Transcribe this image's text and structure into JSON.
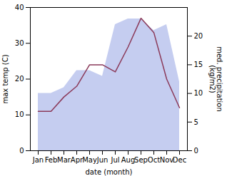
{
  "chart_data": {
    "type": "line",
    "categories": [
      "Jan",
      "Feb",
      "Mar",
      "Apr",
      "May",
      "Jun",
      "Jul",
      "Aug",
      "Sep",
      "Oct",
      "Nov",
      "Dec"
    ],
    "series": [
      {
        "type": "area",
        "axis": "y2",
        "color": "#c5cdf0",
        "values": [
          10,
          10,
          11,
          14,
          14,
          13,
          22,
          23,
          23,
          21,
          22,
          12
        ]
      },
      {
        "type": "line",
        "color": "#8B3A5A",
        "values": [
          11,
          11,
          15,
          18,
          24,
          24,
          22,
          29,
          37,
          33,
          20,
          12
        ]
      }
    ],
    "xlabel": "date (month)",
    "ylabel": "max temp (C)",
    "y2label": "med. precipitation\n(kg/m2)",
    "ylim": [
      0,
      40
    ],
    "yticks": [
      0,
      10,
      20,
      30,
      40
    ],
    "y2lim": [
      0,
      25
    ],
    "y2ticks": [
      0,
      5,
      10,
      15,
      20
    ],
    "grid": false
  }
}
